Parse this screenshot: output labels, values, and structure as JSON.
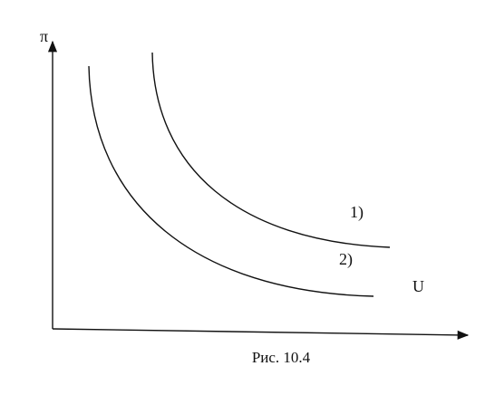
{
  "axes": {
    "y_label": "π",
    "x_label": "U"
  },
  "curves": [
    {
      "label": "1)"
    },
    {
      "label": "2)"
    }
  ],
  "caption": "Рис. 10.4"
}
